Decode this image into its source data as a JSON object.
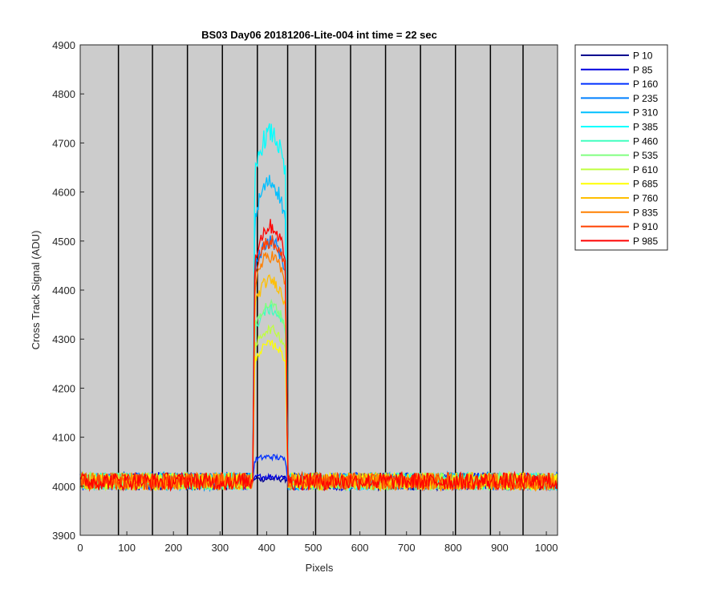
{
  "chart_data": {
    "type": "line",
    "title": "BS03 Day06 20181206-Lite-004 int time = 22 sec",
    "xlabel": "Pixels",
    "ylabel": "Cross Track Signal (ADU)",
    "xlim": [
      0,
      1024
    ],
    "ylim": [
      3900,
      4900
    ],
    "xticks": [
      0,
      100,
      200,
      300,
      400,
      500,
      600,
      700,
      800,
      900,
      1000
    ],
    "yticks": [
      3900,
      4000,
      4100,
      4200,
      4300,
      4400,
      4500,
      4600,
      4700,
      4800,
      4900
    ],
    "grid": false,
    "background_color": "#cccccc",
    "legend_position": "outside-top-right",
    "vertical_lines_x": [
      82,
      155,
      230,
      305,
      380,
      445,
      505,
      580,
      655,
      730,
      805,
      880,
      950
    ],
    "baseline_adu": 4010,
    "plateau_x_range": [
      375,
      440
    ],
    "series": [
      {
        "name": "P 10",
        "color": "#00008f",
        "plateau": 4015
      },
      {
        "name": "P 85",
        "color": "#0000df",
        "plateau": 4020
      },
      {
        "name": "P 160",
        "color": "#0030ff",
        "plateau": 4060
      },
      {
        "name": "P 235",
        "color": "#0080ff",
        "plateau": 4500
      },
      {
        "name": "P 310",
        "color": "#00bfff",
        "plateau": 4620
      },
      {
        "name": "P 385",
        "color": "#00ffff",
        "plateau": 4720
      },
      {
        "name": "P 460",
        "color": "#40ffbf",
        "plateau": 4360
      },
      {
        "name": "P 535",
        "color": "#80ff80",
        "plateau": 4370
      },
      {
        "name": "P 610",
        "color": "#bfff40",
        "plateau": 4320
      },
      {
        "name": "P 685",
        "color": "#ffff00",
        "plateau": 4290
      },
      {
        "name": "P 760",
        "color": "#ffbf00",
        "plateau": 4420
      },
      {
        "name": "P 835",
        "color": "#ff8000",
        "plateau": 4470
      },
      {
        "name": "P 910",
        "color": "#ff4000",
        "plateau": 4500
      },
      {
        "name": "P 985",
        "color": "#ff0000",
        "plateau": 4530
      }
    ]
  }
}
